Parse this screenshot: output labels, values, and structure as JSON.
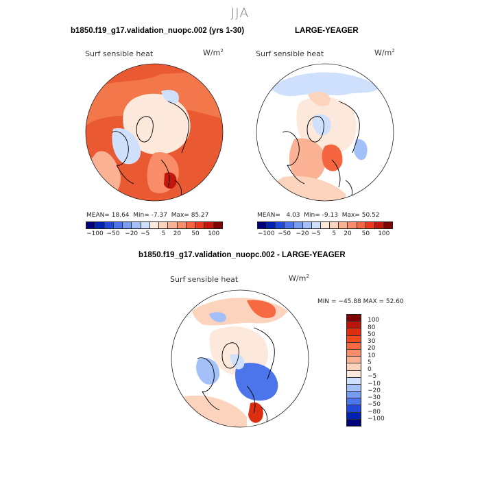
{
  "page": {
    "season": "JJA"
  },
  "colors": {
    "scale": [
      "#00007a",
      "#0022b0",
      "#1f49d6",
      "#4c74eb",
      "#789cf3",
      "#a4c0f8",
      "#cfe0fc",
      "#fde8dc",
      "#fcd3bd",
      "#fbb194",
      "#f98d6a",
      "#f56640",
      "#e83a1c",
      "#c4170b",
      "#7e0404"
    ],
    "diff_scale_top_to_bottom": [
      "#7e0404",
      "#b8140a",
      "#dd2e12",
      "#f04a1e",
      "#f56a42",
      "#f98d6a",
      "#fbb194",
      "#fcd3bd",
      "#fde8dc",
      "#cfe0fc",
      "#a4c0f8",
      "#789cf3",
      "#4c74eb",
      "#1f49d6",
      "#0022b0",
      "#00007a"
    ],
    "land": "#ffffff",
    "coast": "#000000"
  },
  "chart_data": [
    {
      "type": "heatmap",
      "projection": "north-polar-stereographic",
      "title": "b1850.f19_g17.validation_nuopc.002 (yrs 1-30)",
      "variable": "Surf sensible heat",
      "units": "W/m",
      "units_sup": "2",
      "stats": {
        "mean_label": "MEAN=",
        "mean": "18.64",
        "min_label": "Min=",
        "min": "-7.37",
        "max_label": "Max=",
        "max": "85.27"
      },
      "colorbar_labels": [
        "−100",
        "−50",
        "−20",
        "−5",
        "5",
        "20",
        "50",
        "100"
      ]
    },
    {
      "type": "heatmap",
      "projection": "north-polar-stereographic",
      "title": "LARGE-YEAGER",
      "variable": "Surf sensible heat",
      "units": "W/m",
      "units_sup": "2",
      "stats": {
        "mean_label": "MEAN=",
        "mean": "4.03",
        "min_label": "Min=",
        "min": "-9.13",
        "max_label": "Max=",
        "max": "50.52"
      },
      "colorbar_labels": [
        "−100",
        "−50",
        "−20",
        "−5",
        "5",
        "20",
        "50",
        "100"
      ]
    },
    {
      "type": "heatmap",
      "projection": "north-polar-stereographic",
      "title": "b1850.f19_g17.validation_nuopc.002 - LARGE-YEAGER",
      "variable": "Surf sensible heat",
      "units": "W/m",
      "units_sup": "2",
      "stats_text": "MIN = −45.88  MAX =  52.60",
      "colorbar_labels": [
        "100",
        "80",
        "50",
        "30",
        "20",
        "10",
        "5",
        "0",
        "−5",
        "−10",
        "−20",
        "−30",
        "−50",
        "−80",
        "−100"
      ]
    }
  ]
}
